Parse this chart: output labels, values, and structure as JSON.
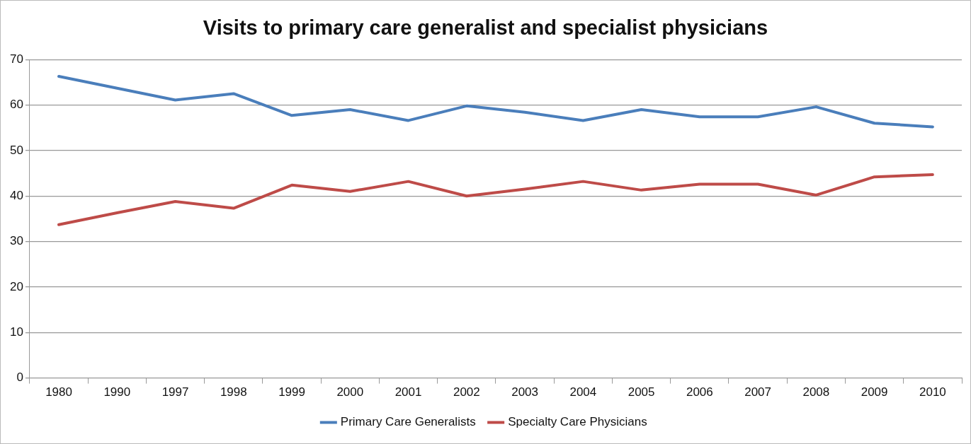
{
  "chart_data": {
    "type": "line",
    "title": "Visits to primary care generalist and specialist physicians",
    "categories": [
      "1980",
      "1990",
      "1997",
      "1998",
      "1999",
      "2000",
      "2001",
      "2002",
      "2003",
      "2004",
      "2005",
      "2006",
      "2007",
      "2008",
      "2009",
      "2010"
    ],
    "series": [
      {
        "name": "Primary Care Generalists",
        "color": "#4a7ebb",
        "values": [
          66.3,
          63.7,
          61.1,
          62.5,
          57.7,
          59.0,
          56.6,
          59.8,
          58.4,
          56.6,
          59.0,
          57.4,
          57.4,
          59.6,
          56.0,
          55.2
        ]
      },
      {
        "name": "Specialty Care Physicians",
        "color": "#be4b48",
        "values": [
          33.7,
          36.3,
          38.8,
          37.3,
          42.4,
          41.0,
          43.2,
          40.0,
          41.5,
          43.2,
          41.3,
          42.6,
          42.6,
          40.2,
          44.2,
          44.7
        ]
      }
    ],
    "ylim": [
      0,
      70
    ],
    "yticks": [
      0,
      10,
      20,
      30,
      40,
      50,
      60,
      70
    ],
    "grid": "y",
    "legend": "bottom",
    "marker": "none",
    "line_style": "solid"
  }
}
